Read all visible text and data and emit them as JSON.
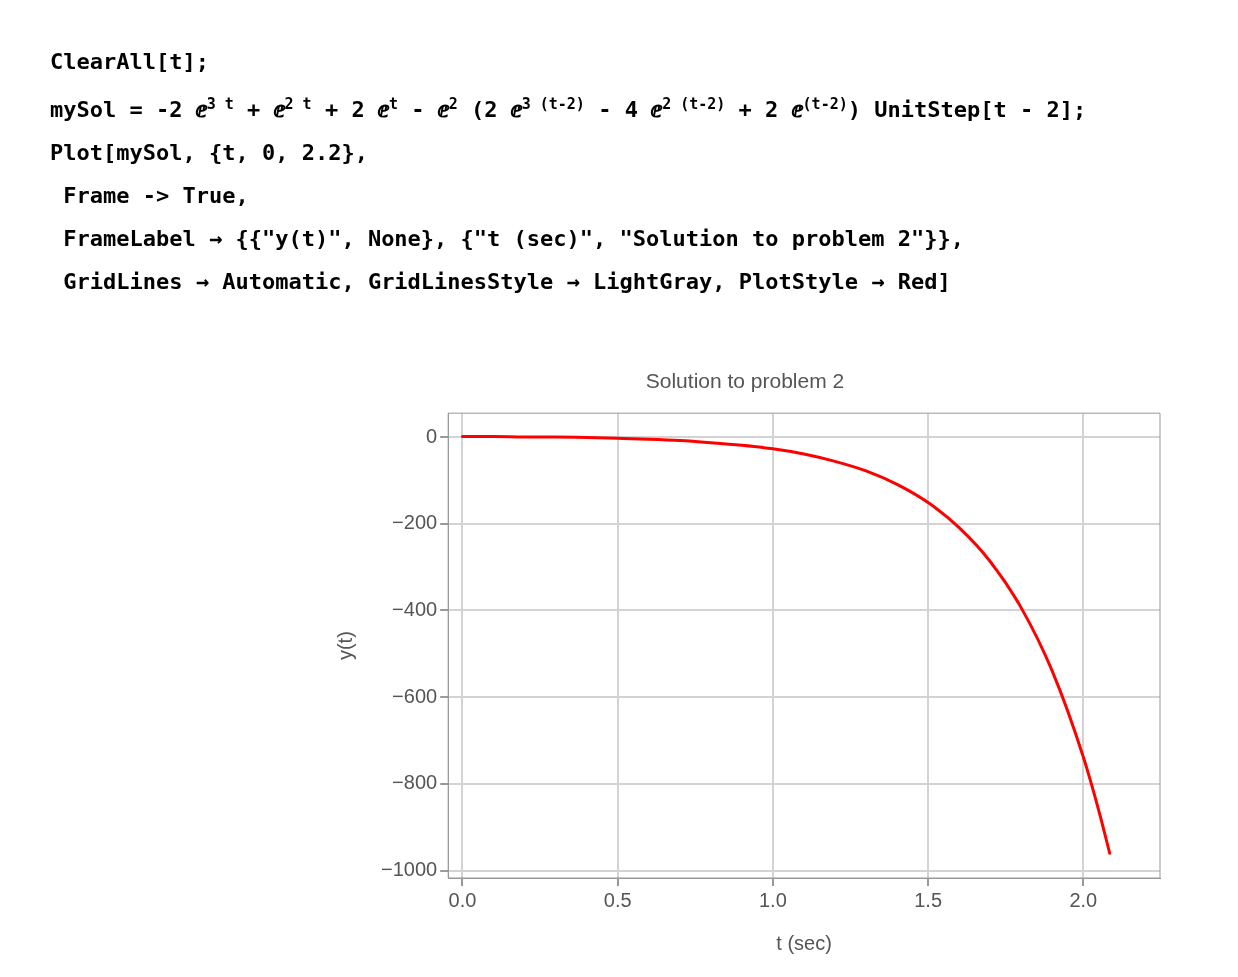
{
  "chart_data": {
    "type": "line",
    "title": "Solution to problem 2",
    "xlabel": "t (sec)",
    "ylabel": "y(t)",
    "annotations": [
      "ClearAll[t];",
      "mySol = -2 ⅇ$^{3 t}$ + ⅇ$^{2 t}$ + 2 ⅇ$^{t}$ - ⅇ$^{2}$ (2 ⅇ$^{3 (t-2)}$ - 4 ⅇ$^{2 (t-2)}$ + 2 ⅇ$^{(t-2)}$) UnitStep[t - 2];",
      "Plot[mySol, {t, 0, 2.2},",
      " Frame -> True,",
      " FrameLabel → {{\"y(t)\", None}, {\"t (sec)\", \"Solution to problem 2\"}},",
      " GridLines → Automatic, GridLinesStyle → LightGray, PlotStyle → Red]"
    ],
    "x": [
      0,
      0.1,
      0.2,
      0.3,
      0.4,
      0.5,
      0.6,
      0.7,
      0.8,
      0.9,
      1.0,
      1.1,
      1.2,
      1.3,
      1.4,
      1.5,
      1.6,
      1.7,
      1.8,
      1.9,
      2.0,
      2.05,
      2.085
    ],
    "series": [
      {
        "color": "#ff0000",
        "values": [
          1,
          1,
          0,
          0,
          -1,
          -3,
          -5,
          -8,
          -13,
          -19,
          -27,
          -39,
          -56,
          -78,
          -109,
          -151,
          -209,
          -287,
          -394,
          -540,
          -738,
          -862,
          -960
        ]
      }
    ],
    "xlim": [
      -0.046,
      2.247
    ],
    "ylim": [
      -1017,
      55
    ],
    "xticks": [
      {
        "value": 0,
        "label": "0.0"
      },
      0.5,
      {
        "value": 1,
        "label": "1.0"
      },
      1.5,
      {
        "value": 2,
        "label": "2.0"
      }
    ],
    "yticks": [
      {
        "value": 0,
        "label": "0"
      },
      {
        "value": -200,
        "label": "−200"
      },
      {
        "value": -400,
        "label": "−400"
      },
      {
        "value": -600,
        "label": "−600"
      },
      {
        "value": -800,
        "label": "−800"
      },
      {
        "value": -1000,
        "label": "−1000"
      }
    ],
    "grid": true,
    "legend": false,
    "marker": "none",
    "line_style": "solid"
  }
}
